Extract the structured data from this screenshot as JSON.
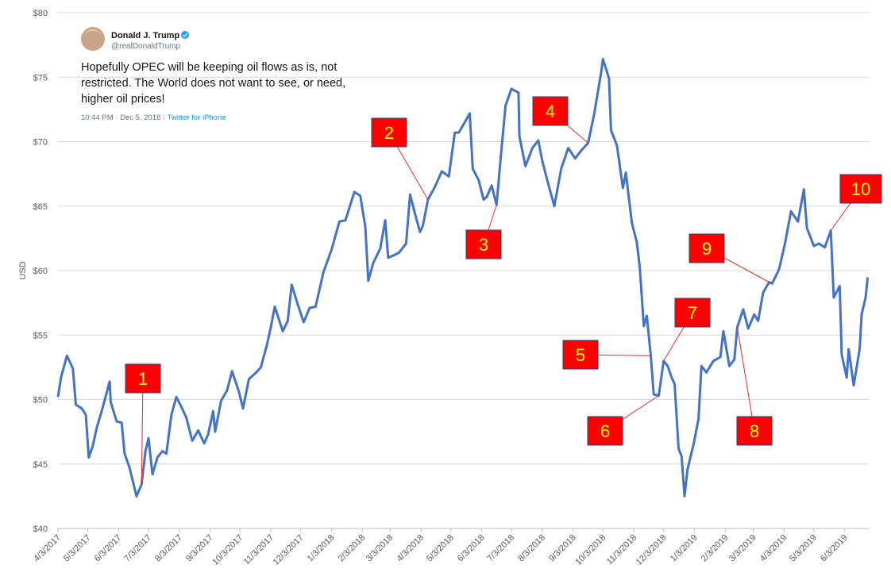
{
  "chart_data": {
    "type": "line",
    "y_label": "USD",
    "tweet": {
      "name": "Donald J. Trump",
      "handle": "@realDonaldTrump",
      "text_lines": [
        "Hopefully OPEC will be keeping oil flows as is, not",
        "restricted. The World does not want to see, or need,",
        "higher oil prices!"
      ],
      "timestamp": "10:44 PM · Dec 5, 2018 · ",
      "source": "Twitter for iPhone"
    },
    "x": [
      "4/3/2017",
      "4/6/2017",
      "4/12/2017",
      "4/18/2017",
      "4/21/2017",
      "4/27/2017",
      "5/1/2017",
      "5/4/2017",
      "5/8/2017",
      "5/12/2017",
      "5/18/2017",
      "5/25/2017",
      "5/26/2017",
      "6/1/2017",
      "6/6/2017",
      "6/9/2017",
      "6/14/2017",
      "6/21/2017",
      "6/26/2017",
      "6/30/2017",
      "7/3/2017",
      "7/7/2017",
      "7/12/2017",
      "7/17/2017",
      "7/21/2017",
      "7/26/2017",
      "7/31/2017",
      "8/4/2017",
      "8/10/2017",
      "8/16/2017",
      "8/22/2017",
      "8/28/2017",
      "9/1/2017",
      "9/6/2017",
      "9/8/2017",
      "9/14/2017",
      "9/20/2017",
      "9/25/2017",
      "10/2/2017",
      "10/6/2017",
      "10/12/2017",
      "10/18/2017",
      "10/24/2017",
      "10/30/2017",
      "11/3/2017",
      "11/7/2017",
      "11/15/2017",
      "11/20/2017",
      "11/24/2017",
      "11/30/2017",
      "12/6/2017",
      "12/12/2017",
      "12/18/2017",
      "12/26/2017",
      "1/3/2018",
      "1/11/2018",
      "1/17/2018",
      "1/24/2018",
      "1/26/2018",
      "2/1/2018",
      "2/6/2018",
      "2/9/2018",
      "2/14/2018",
      "2/21/2018",
      "2/26/2018",
      "3/1/2018",
      "3/7/2018",
      "3/12/2018",
      "3/19/2018",
      "3/23/2018",
      "3/28/2018",
      "4/2/2018",
      "4/5/2018",
      "4/10/2018",
      "4/17/2018",
      "4/24/2018",
      "5/1/2018",
      "5/7/2018",
      "5/11/2018",
      "5/17/2018",
      "5/22/2018",
      "5/25/2018",
      "5/31/2018",
      "6/5/2018",
      "6/8/2018",
      "6/13/2018",
      "6/18/2018",
      "6/22/2018",
      "6/27/2018",
      "7/3/2018",
      "7/10/2018",
      "7/11/2018",
      "7/17/2018",
      "7/24/2018",
      "7/30/2018",
      "8/3/2018",
      "8/8/2018",
      "8/15/2018",
      "8/22/2018",
      "8/29/2018",
      "9/5/2018",
      "9/11/2018",
      "9/18/2018",
      "9/24/2018",
      "10/1/2018",
      "10/3/2018",
      "10/9/2018",
      "10/11/2018",
      "10/17/2018",
      "10/23/2018",
      "10/26/2018",
      "11/1/2018",
      "11/6/2018",
      "11/9/2018",
      "11/13/2018",
      "11/16/2018",
      "11/20/2018",
      "11/23/2018",
      "11/28/2018",
      "12/3/2018",
      "12/7/2018",
      "12/11/2018",
      "12/14/2018",
      "12/18/2018",
      "12/21/2018",
      "12/24/2018",
      "12/27/2018",
      "1/2/2019",
      "1/7/2019",
      "1/10/2019",
      "1/15/2019",
      "1/22/2019",
      "1/29/2019",
      "2/1/2019",
      "2/7/2019",
      "2/12/2019",
      "2/15/2019",
      "2/21/2019",
      "2/26/2019",
      "3/4/2019",
      "3/8/2019",
      "3/13/2019",
      "3/19/2019",
      "3/22/2019",
      "3/29/2019",
      "4/4/2019",
      "4/10/2019",
      "4/17/2019",
      "4/23/2019",
      "4/26/2019",
      "5/3/2019",
      "5/8/2019",
      "5/14/2019",
      "5/20/2019",
      "5/23/2019",
      "5/29/2019",
      "5/31/2019",
      "6/5/2019",
      "6/7/2019",
      "6/12/2019",
      "6/18/2019",
      "6/20/2019",
      "6/24/2019",
      "6/26/2019",
      "6/27/2019"
    ],
    "series": [
      {
        "color": "#4472c4",
        "values": [
          50.2,
          51.7,
          53.4,
          52.4,
          49.6,
          49.3,
          48.8,
          45.5,
          46.4,
          47.8,
          49.4,
          51.4,
          49.8,
          48.3,
          48.2,
          45.8,
          44.7,
          42.5,
          43.4,
          46.0,
          47.0,
          44.2,
          45.5,
          46.0,
          45.8,
          48.8,
          50.2,
          49.6,
          48.6,
          46.8,
          47.6,
          46.6,
          47.3,
          49.1,
          47.5,
          49.9,
          50.7,
          52.2,
          50.6,
          49.3,
          51.6,
          52.0,
          52.5,
          54.2,
          55.6,
          57.2,
          55.3,
          56.1,
          58.9,
          57.4,
          56.0,
          57.1,
          57.2,
          59.9,
          61.6,
          63.8,
          63.9,
          65.6,
          66.1,
          65.8,
          63.4,
          59.2,
          60.6,
          61.7,
          63.9,
          61.0,
          61.2,
          61.4,
          62.1,
          65.9,
          64.4,
          63.0,
          63.5,
          65.5,
          66.5,
          67.7,
          67.3,
          70.7,
          70.7,
          71.5,
          72.2,
          67.9,
          67.0,
          65.5,
          65.7,
          66.6,
          65.1,
          68.6,
          72.8,
          74.1,
          73.8,
          70.4,
          68.1,
          69.5,
          70.1,
          68.5,
          67.0,
          65.0,
          67.9,
          69.5,
          68.7,
          69.3,
          69.9,
          72.1,
          75.3,
          76.4,
          74.9,
          70.9,
          69.7,
          66.4,
          67.6,
          63.7,
          62.2,
          60.2,
          55.7,
          56.5,
          53.4,
          50.4,
          50.3,
          53.0,
          52.6,
          51.7,
          51.2,
          46.2,
          45.6,
          42.5,
          44.6,
          46.5,
          48.5,
          52.6,
          52.1,
          53.0,
          53.3,
          55.3,
          52.6,
          53.1,
          55.6,
          57.0,
          55.5,
          56.6,
          56.1,
          58.3,
          59.1,
          59.0,
          60.1,
          62.1,
          64.6,
          63.8,
          66.3,
          63.3,
          61.9,
          62.1,
          61.8,
          63.1,
          57.9,
          58.8,
          53.5,
          51.7,
          53.9,
          51.1,
          53.9,
          56.6,
          57.9,
          59.4,
          59.4
        ]
      }
    ],
    "xlim": [
      "4/3/2017",
      "6/28/2019"
    ],
    "xticks": [
      "4/3/2017",
      "5/3/2017",
      "6/3/2017",
      "7/3/2017",
      "8/3/2017",
      "9/3/2017",
      "10/3/2017",
      "11/3/2017",
      "12/3/2017",
      "1/3/2018",
      "2/3/2018",
      "3/3/2018",
      "4/3/2018",
      "5/3/2018",
      "6/3/2018",
      "7/3/2018",
      "8/3/2018",
      "9/3/2018",
      "10/3/2018",
      "11/3/2018",
      "12/3/2018",
      "1/3/2019",
      "2/3/2019",
      "3/3/2019",
      "4/3/2019",
      "5/3/2019",
      "6/3/2019"
    ],
    "ylim": [
      40,
      80
    ],
    "yticks": [
      {
        "value": 40,
        "label": "$40"
      },
      {
        "value": 45,
        "label": "$45"
      },
      {
        "value": 50,
        "label": "$50"
      },
      {
        "value": 55,
        "label": "$55"
      },
      {
        "value": 60,
        "label": "$60"
      },
      {
        "value": 65,
        "label": "$65"
      },
      {
        "value": 70,
        "label": "$70"
      },
      {
        "value": 75,
        "label": "$75"
      },
      {
        "value": 80,
        "label": "$80"
      }
    ],
    "grid": true,
    "annotations": [
      {
        "label": "1",
        "x": "6/26/2017"
      },
      {
        "label": "2",
        "x": "4/10/2018"
      },
      {
        "label": "3",
        "x": "6/18/2018"
      },
      {
        "label": "4",
        "x": "9/18/2018"
      },
      {
        "label": "5",
        "x": "11/20/2018"
      },
      {
        "label": "6",
        "x": "11/28/2018"
      },
      {
        "label": "7",
        "x": "12/3/2018"
      },
      {
        "label": "8",
        "x": "2/15/2019"
      },
      {
        "label": "9",
        "x": "3/19/2019"
      },
      {
        "label": "10",
        "x": "5/20/2019"
      }
    ]
  }
}
